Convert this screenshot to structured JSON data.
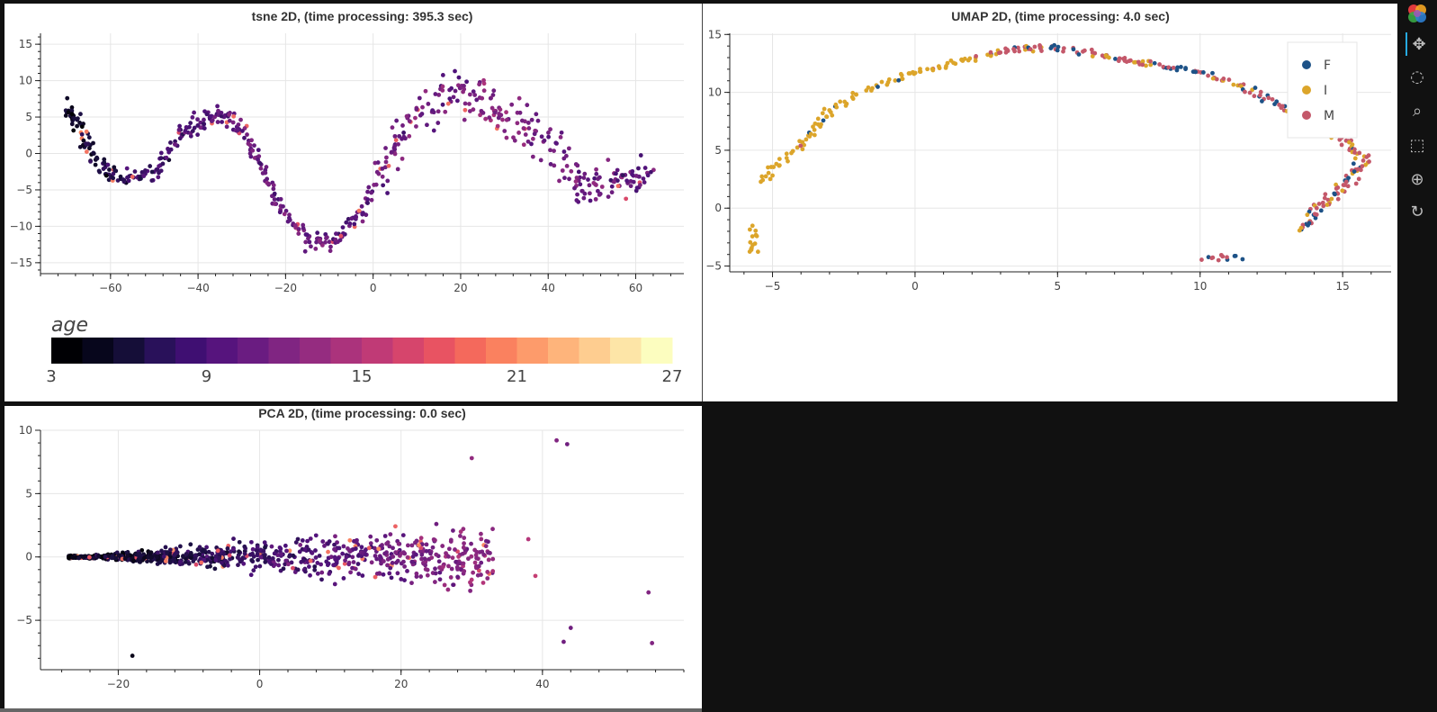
{
  "chart_data": [
    {
      "id": "tsne",
      "type": "scatter",
      "title": "tsne 2D, (time processing: 395.3 sec)",
      "xlim": [
        -76,
        71
      ],
      "ylim": [
        -16.5,
        16.5
      ],
      "xticks": [
        -60,
        -40,
        -20,
        0,
        20,
        40,
        60
      ],
      "yticks": [
        -15,
        -10,
        -5,
        0,
        5,
        10,
        15
      ],
      "grid": true,
      "color_by": "age",
      "colorbar": {
        "title": "age",
        "range": [
          3,
          27
        ],
        "ticks": [
          3,
          9,
          15,
          21,
          27
        ],
        "palette": [
          "#000004",
          "#07061c",
          "#150e38",
          "#29115a",
          "#3f0f72",
          "#56147d",
          "#6a1c81",
          "#802582",
          "#952c80",
          "#ab337c",
          "#c03a76",
          "#d6456c",
          "#e85362",
          "#f4695c",
          "#fa815f",
          "#fd9b6b",
          "#feb47b",
          "#fecd90",
          "#fde5a7",
          "#fcfdbf"
        ]
      },
      "trend_sample": [
        {
          "x": -70,
          "y": 6.5,
          "age": 4
        },
        {
          "x": -67,
          "y": 3.5,
          "age": 5
        },
        {
          "x": -63,
          "y": -1.5,
          "age": 6
        },
        {
          "x": -58,
          "y": -3.5,
          "age": 7
        },
        {
          "x": -50,
          "y": -2.5,
          "age": 8
        },
        {
          "x": -44,
          "y": 2.5,
          "age": 9
        },
        {
          "x": -38,
          "y": 5,
          "age": 9
        },
        {
          "x": -32,
          "y": 5,
          "age": 10
        },
        {
          "x": -27,
          "y": 0,
          "age": 10
        },
        {
          "x": -22,
          "y": -7,
          "age": 10
        },
        {
          "x": -15,
          "y": -12,
          "age": 11
        },
        {
          "x": -8,
          "y": -12,
          "age": 10
        },
        {
          "x": -2,
          "y": -7,
          "age": 10
        },
        {
          "x": 4,
          "y": 0,
          "age": 11
        },
        {
          "x": 10,
          "y": 5,
          "age": 11
        },
        {
          "x": 18,
          "y": 9,
          "age": 11
        },
        {
          "x": 25,
          "y": 8,
          "age": 12
        },
        {
          "x": 30,
          "y": 5,
          "age": 12
        },
        {
          "x": 38,
          "y": 3,
          "age": 11
        },
        {
          "x": 45,
          "y": -2,
          "age": 11
        },
        {
          "x": 51,
          "y": -5,
          "age": 11
        },
        {
          "x": 58,
          "y": -4,
          "age": 10
        },
        {
          "x": 63,
          "y": -3,
          "age": 10
        }
      ]
    },
    {
      "id": "umap",
      "type": "scatter",
      "title": "UMAP 2D, (time processing: 4.0 sec)",
      "xlim": [
        -6.5,
        16.7
      ],
      "ylim": [
        -5.5,
        15.1
      ],
      "xticks": [
        -5,
        0,
        5,
        10,
        15
      ],
      "yticks": [
        -5,
        0,
        5,
        10,
        15
      ],
      "grid": true,
      "legend_position": "top-right",
      "series": [
        {
          "name": "F",
          "color": "#1d5287"
        },
        {
          "name": "I",
          "color": "#dca52a"
        },
        {
          "name": "M",
          "color": "#c4586a"
        }
      ],
      "trend_sample": [
        {
          "x": -5.5,
          "y": 2.2
        },
        {
          "x": -4,
          "y": 5.5
        },
        {
          "x": -3,
          "y": 8.5
        },
        {
          "x": -1,
          "y": 11
        },
        {
          "x": 1,
          "y": 12.4
        },
        {
          "x": 3,
          "y": 13.5
        },
        {
          "x": 4.5,
          "y": 14
        },
        {
          "x": 6.5,
          "y": 13.2
        },
        {
          "x": 8,
          "y": 12.5
        },
        {
          "x": 10,
          "y": 11.7
        },
        {
          "x": 12,
          "y": 10
        },
        {
          "x": 13.5,
          "y": 8
        },
        {
          "x": 15,
          "y": 6
        },
        {
          "x": 15.8,
          "y": 4
        },
        {
          "x": 15,
          "y": 2
        },
        {
          "x": 14.2,
          "y": 0
        },
        {
          "x": 13.5,
          "y": -2
        },
        {
          "x": -5.8,
          "y": -1.2
        },
        {
          "x": -5.5,
          "y": -3.6
        },
        {
          "x": 10.5,
          "y": -4.5
        },
        {
          "x": 11.5,
          "y": -4.1
        }
      ]
    },
    {
      "id": "pca",
      "type": "scatter",
      "title": "PCA 2D, (time processing: 0.0 sec)",
      "xlim": [
        -31,
        60
      ],
      "ylim": [
        -8.9,
        10
      ],
      "xticks": [
        -20,
        0,
        20,
        40
      ],
      "yticks": [
        -5,
        0,
        5,
        10
      ],
      "grid": true,
      "color_by": "age",
      "trend_sample": [
        {
          "x": -27,
          "y": 0,
          "age": 4
        },
        {
          "x": -20,
          "y": 0,
          "age": 6
        },
        {
          "x": -10,
          "y": 0,
          "age": 8
        },
        {
          "x": 0,
          "y": 0.5,
          "age": 10
        },
        {
          "x": 10,
          "y": 0,
          "age": 11
        },
        {
          "x": 20,
          "y": -0.5,
          "age": 11
        },
        {
          "x": 30,
          "y": 0,
          "age": 12
        },
        {
          "x": 42,
          "y": 9.2,
          "age": 13
        },
        {
          "x": 55,
          "y": -6.8,
          "age": 12
        },
        {
          "x": -18,
          "y": -7.8,
          "age": 4
        }
      ]
    }
  ],
  "toolbar": {
    "icons": [
      "bokeh-logo-icon",
      "pan-icon",
      "lasso-select-icon",
      "wheel-zoom-icon",
      "box-select-icon",
      "zoom-icon",
      "reset-icon"
    ]
  }
}
